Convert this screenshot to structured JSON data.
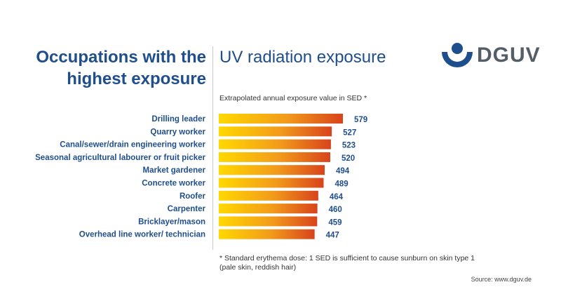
{
  "brand": {
    "logo_text": "DGUV",
    "primary_color": "#1f4e8c",
    "logo_text_color": "#555e66"
  },
  "header": {
    "title_line1": "Occupations with the",
    "title_line2": "highest exposure",
    "subtitle_right": "UV radiation exposure"
  },
  "footnote": {
    "line1": "* Standard erythema dose: 1 SED is sufficient to cause sunburn on skin type 1",
    "line2": "(pale skin, reddish hair)"
  },
  "source": "Source: www.dguv.de",
  "chart_data": {
    "type": "bar",
    "orientation": "horizontal",
    "title": "Extrapolated annual exposure value in SED *",
    "categories": [
      "Drilling leader",
      "Quarry worker",
      "Canal/sewer/drain engineering worker",
      "Seasonal agricultural labourer or fruit picker",
      "Market gardener",
      "Concrete worker",
      "Roofer",
      "Carpenter",
      "Bricklayer/mason",
      "Overhead line worker/ technician"
    ],
    "values": [
      579,
      527,
      523,
      520,
      494,
      489,
      464,
      460,
      459,
      447
    ],
    "data_labels": [
      "579",
      "527",
      "523",
      "520",
      "494",
      "489",
      "464",
      "460",
      "459",
      "447"
    ],
    "xlim": [
      0,
      579
    ],
    "grid": false,
    "legend": "none",
    "bar_gradient": [
      "#ffd800",
      "#f29a1b",
      "#d8431b"
    ],
    "label_color": "#1f4e8c"
  }
}
